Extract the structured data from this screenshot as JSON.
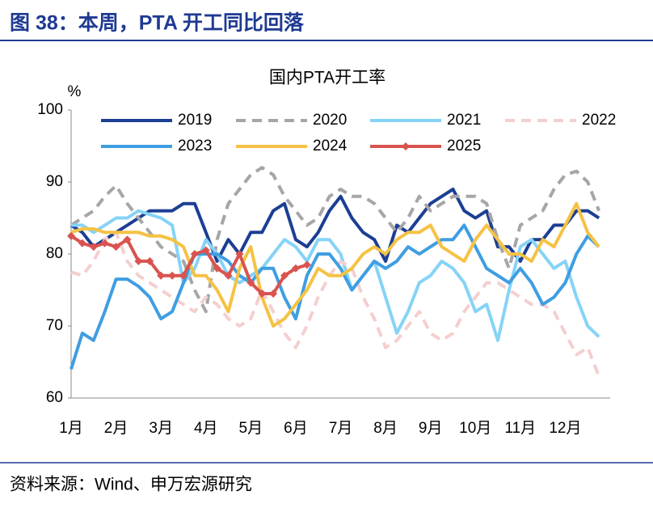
{
  "header": {
    "title": "图 38：本周，PTA 开工同比回落"
  },
  "source": "资料来源：Wind、申万宏源研究",
  "chart_data": {
    "type": "line",
    "title": "国内PTA开工率",
    "y_unit": "%",
    "categories": [
      "1月",
      null,
      null,
      null,
      "2月",
      null,
      null,
      null,
      "3月",
      null,
      null,
      null,
      "4月",
      null,
      null,
      null,
      "5月",
      null,
      null,
      null,
      "6月",
      null,
      null,
      null,
      "7月",
      null,
      null,
      null,
      "8月",
      null,
      null,
      null,
      "9月",
      null,
      null,
      null,
      "10月",
      null,
      null,
      null,
      "11月",
      null,
      null,
      null,
      "12月",
      null,
      null,
      null
    ],
    "ylim": [
      60,
      100
    ],
    "yticks": [
      60,
      70,
      80,
      90,
      100
    ],
    "grid": false,
    "series": [
      {
        "name": "2019",
        "color": "#1c3f94",
        "dash": false,
        "values": [
          84,
          83,
          81,
          82,
          83,
          84,
          85,
          86,
          86,
          86,
          87,
          87,
          83,
          79,
          82,
          80,
          83,
          83,
          86,
          87,
          82,
          81,
          83,
          86,
          88,
          85,
          83,
          82,
          79,
          84,
          83,
          85,
          87,
          88,
          89,
          86,
          85,
          86,
          81,
          81,
          79,
          82,
          82,
          84,
          84,
          86,
          86,
          85
        ]
      },
      {
        "name": "2020",
        "color": "#a6a6a6",
        "dash": true,
        "values": [
          84,
          85,
          86,
          88,
          89.5,
          87,
          85,
          83,
          81,
          80,
          79,
          75,
          72,
          82,
          87,
          89,
          91,
          92,
          91,
          88,
          86,
          84,
          85,
          88,
          89,
          88,
          88,
          87,
          85,
          83,
          85,
          88,
          86,
          87,
          88,
          88,
          88,
          87,
          82,
          78,
          84,
          85,
          86,
          89,
          91,
          91.5,
          90,
          86
        ]
      },
      {
        "name": "2021",
        "color": "#86d3f7",
        "dash": false,
        "values": [
          84,
          84,
          83,
          84,
          85,
          85,
          86,
          85.5,
          85,
          84,
          76,
          78,
          82,
          80,
          77,
          76,
          77,
          78,
          80,
          82,
          81,
          79,
          82,
          82,
          80,
          75,
          77,
          79,
          74,
          69,
          72,
          76,
          77,
          79,
          78,
          76,
          72,
          73,
          68,
          75,
          81,
          82,
          80,
          78,
          79,
          74,
          70,
          68.5
        ]
      },
      {
        "name": "2022",
        "color": "#f4cfcf",
        "dash": true,
        "values": [
          77.5,
          77,
          79,
          82,
          83,
          79,
          77,
          76,
          75,
          74,
          73,
          72,
          74,
          73,
          71,
          70,
          71,
          75,
          72,
          69,
          67,
          70,
          74,
          77,
          79,
          78,
          74,
          71,
          67,
          68,
          70,
          72,
          69,
          68,
          69,
          72,
          74,
          76,
          76,
          75,
          74,
          73,
          73,
          72,
          69,
          66,
          67,
          63
        ]
      },
      {
        "name": "2023",
        "color": "#3f9ee2",
        "dash": false,
        "values": [
          64,
          69,
          68,
          72,
          76.5,
          76.5,
          75.5,
          74,
          71,
          72,
          76,
          80,
          80,
          80,
          79,
          77,
          76,
          78,
          78,
          74,
          71,
          77,
          80,
          80,
          78,
          75,
          77,
          79,
          78,
          79,
          81,
          80,
          81,
          82,
          82,
          84,
          81,
          78,
          77,
          76,
          78,
          76,
          73,
          74,
          76,
          80,
          82.5,
          81
        ]
      },
      {
        "name": "2024",
        "color": "#f5c244",
        "dash": false,
        "values": [
          83,
          83.5,
          83.5,
          83,
          83,
          83,
          83,
          82.5,
          82.5,
          82,
          81,
          77,
          77,
          75,
          72,
          78,
          81,
          74,
          70,
          71,
          73,
          75,
          78,
          77,
          77,
          78,
          80,
          81,
          80,
          82,
          83,
          83,
          84,
          81,
          80,
          79,
          82,
          84,
          82,
          80,
          80,
          79,
          82,
          81,
          84,
          87,
          83,
          81
        ]
      },
      {
        "name": "2025",
        "color": "#d9534f",
        "dash": false,
        "marker": "diamond",
        "values": [
          82.5,
          81.5,
          81,
          81.5,
          81,
          82,
          79,
          79,
          77,
          77,
          77,
          80,
          80.5,
          78,
          77,
          80,
          76,
          74.5,
          74.5,
          77,
          78,
          78.5,
          null,
          null,
          null,
          null,
          null,
          null,
          null,
          null,
          null,
          null,
          null,
          null,
          null,
          null,
          null,
          null,
          null,
          null,
          null,
          null,
          null,
          null,
          null,
          null,
          null,
          null
        ]
      }
    ]
  }
}
